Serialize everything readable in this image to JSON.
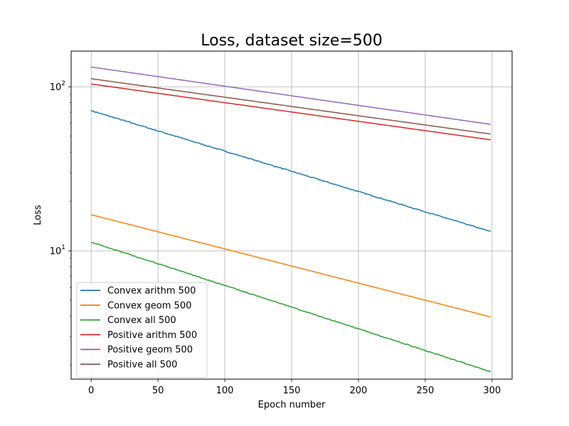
{
  "chart_data": {
    "type": "line",
    "title": "Loss, dataset size=500",
    "xlabel": "Epoch number",
    "ylabel": "Loss",
    "xlim": [
      -15,
      315
    ],
    "ylim": [
      1.65,
      165
    ],
    "yscale": "log",
    "grid": true,
    "legend_position": "lower-left",
    "xticks": [
      0,
      50,
      100,
      150,
      200,
      250,
      300
    ],
    "yticks": [
      {
        "value": 10,
        "base": "10",
        "exp": "1"
      },
      {
        "value": 100,
        "base": "10",
        "exp": "2"
      }
    ],
    "x_range": [
      0,
      299
    ],
    "series": [
      {
        "name": "Convex arithm 500",
        "color": "#1f77b4",
        "start": 71.5,
        "end": 13.1,
        "noise": 0.006
      },
      {
        "name": "Convex geom 500",
        "color": "#ff7f0e",
        "start": 16.6,
        "end": 3.95,
        "noise": 0
      },
      {
        "name": "Convex all 500",
        "color": "#2ca02c",
        "start": 11.3,
        "end": 1.83,
        "noise": 0.006
      },
      {
        "name": "Positive arithm 500",
        "color": "#d62728",
        "start": 104,
        "end": 47.5,
        "noise": 0
      },
      {
        "name": "Positive geom 500",
        "color": "#9467bd",
        "start": 132,
        "end": 59,
        "noise": 0
      },
      {
        "name": "Positive all 500",
        "color": "#8c564b",
        "start": 112,
        "end": 51.5,
        "noise": 0
      }
    ]
  }
}
